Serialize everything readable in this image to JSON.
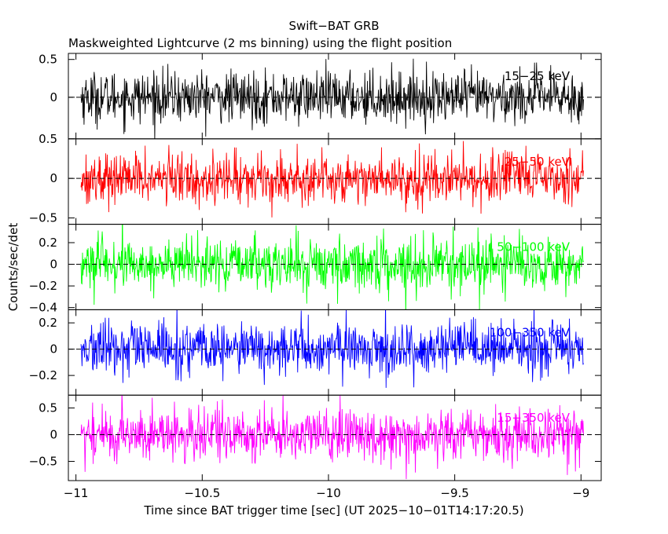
{
  "chart_data": {
    "type": "line",
    "title": "Swift−BAT GRB",
    "subtitle": "Maskweighted Lightcurve (2 ms binning) using the flight position",
    "xlabel": "Time since BAT trigger time [sec] (UT 2025−10−01T14:17:20.5)",
    "ylabel": "Counts/sec/det",
    "xlim": [
      -11.03,
      -8.92
    ],
    "data_x_range": [
      -10.98,
      -8.99
    ],
    "bin_width_sec": 0.002,
    "x_ticks": [
      {
        "value": -11,
        "label": "−11"
      },
      {
        "value": -10.5,
        "label": "−10.5"
      },
      {
        "value": -10,
        "label": "−10"
      },
      {
        "value": -9.5,
        "label": "−9.5"
      },
      {
        "value": -9,
        "label": "−9"
      }
    ],
    "panels": [
      {
        "band": "15−25 keV",
        "color": "#000000",
        "ylim": [
          -0.55,
          0.58
        ],
        "noise_sigma": 0.17,
        "y_ticks": [
          {
            "value": 0.5,
            "label": "0.5"
          },
          {
            "value": 0,
            "label": "0"
          }
        ]
      },
      {
        "band": "25−50 keV",
        "color": "#ff0000",
        "ylim": [
          -0.58,
          0.5
        ],
        "noise_sigma": 0.16,
        "y_ticks": [
          {
            "value": 0.5,
            "label": "0.5"
          },
          {
            "value": 0,
            "label": "0"
          },
          {
            "value": -0.5,
            "label": "−0.5"
          }
        ]
      },
      {
        "band": "50−100 keV",
        "color": "#00ff00",
        "ylim": [
          -0.42,
          0.37
        ],
        "noise_sigma": 0.12,
        "y_ticks": [
          {
            "value": 0.2,
            "label": "0.2"
          },
          {
            "value": 0,
            "label": "0"
          },
          {
            "value": -0.2,
            "label": "−0.2"
          },
          {
            "value": -0.4,
            "label": "−0.4"
          }
        ]
      },
      {
        "band": "100−350 keV",
        "color": "#0000ff",
        "ylim": [
          -0.35,
          0.3
        ],
        "noise_sigma": 0.1,
        "y_ticks": [
          {
            "value": 0.2,
            "label": "0.2"
          },
          {
            "value": 0,
            "label": "0"
          },
          {
            "value": -0.2,
            "label": "−0.2"
          }
        ]
      },
      {
        "band": "15−350 keV",
        "color": "#ff00ff",
        "ylim": [
          -0.86,
          0.74
        ],
        "noise_sigma": 0.25,
        "y_ticks": [
          {
            "value": 0.5,
            "label": "0.5"
          },
          {
            "value": 0,
            "label": "0"
          },
          {
            "value": -0.5,
            "label": "−0.5"
          }
        ]
      }
    ]
  }
}
